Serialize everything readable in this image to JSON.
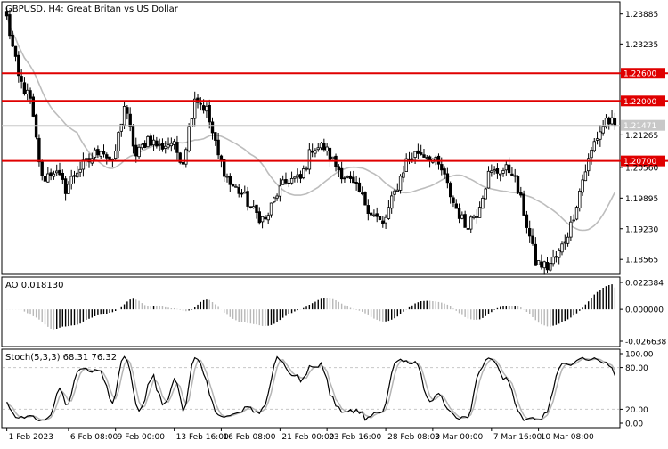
{
  "chart_data": [
    {
      "type": "candlestick",
      "title": "GBPUSD, H4:  Great Britan vs US Dollar",
      "symbol": "GBPUSD",
      "timeframe": "H4",
      "ylim": [
        1.1826,
        1.2413
      ],
      "price_ticks": [
        "1.23885",
        "1.23235",
        "1.22600",
        "1.22000",
        "1.21471",
        "1.21265",
        "1.20700",
        "1.20560",
        "1.19895",
        "1.19230",
        "1.18565"
      ],
      "horizontal_levels": [
        {
          "value": 1.226,
          "label": "1.22600"
        },
        {
          "value": 1.22,
          "label": "1.22000"
        },
        {
          "value": 1.207,
          "label": "1.20700"
        }
      ],
      "current_price": {
        "value": 1.21471,
        "label": "1.21471"
      },
      "moving_average_color": "#bdbdbd",
      "level_color": "#e00000",
      "anchors": [
        [
          0,
          1.238
        ],
        [
          4,
          1.225
        ],
        [
          8,
          1.22
        ],
        [
          12,
          1.203
        ],
        [
          16,
          1.205
        ],
        [
          20,
          1.201
        ],
        [
          24,
          1.205
        ],
        [
          28,
          1.207
        ],
        [
          32,
          1.21
        ],
        [
          36,
          1.206
        ],
        [
          40,
          1.219
        ],
        [
          44,
          1.208
        ],
        [
          48,
          1.212
        ],
        [
          52,
          1.21
        ],
        [
          56,
          1.211
        ],
        [
          60,
          1.207
        ],
        [
          64,
          1.221
        ],
        [
          68,
          1.218
        ],
        [
          72,
          1.208
        ],
        [
          76,
          1.202
        ],
        [
          80,
          1.2
        ],
        [
          84,
          1.196
        ],
        [
          88,
          1.194
        ],
        [
          92,
          1.2
        ],
        [
          96,
          1.203
        ],
        [
          100,
          1.203
        ],
        [
          104,
          1.21
        ],
        [
          108,
          1.21
        ],
        [
          112,
          1.206
        ],
        [
          116,
          1.203
        ],
        [
          120,
          1.2
        ],
        [
          124,
          1.196
        ],
        [
          128,
          1.193
        ],
        [
          132,
          1.2
        ],
        [
          136,
          1.207
        ],
        [
          140,
          1.209
        ],
        [
          144,
          1.208
        ],
        [
          148,
          1.205
        ],
        [
          152,
          1.198
        ],
        [
          156,
          1.193
        ],
        [
          160,
          1.196
        ],
        [
          164,
          1.204
        ],
        [
          168,
          1.205
        ],
        [
          172,
          1.205
        ],
        [
          176,
          1.196
        ],
        [
          180,
          1.185
        ],
        [
          184,
          1.184
        ],
        [
          188,
          1.187
        ],
        [
          192,
          1.193
        ],
        [
          196,
          1.203
        ],
        [
          200,
          1.211
        ],
        [
          204,
          1.216
        ],
        [
          207,
          1.2147
        ]
      ],
      "x_labels": [
        {
          "label": "1 Feb 2023",
          "index": 0
        },
        {
          "label": "6 Feb 08:00",
          "index": 21
        },
        {
          "label": "9 Feb 00:00",
          "index": 37
        },
        {
          "label": "13 Feb 16:00",
          "index": 57
        },
        {
          "label": "16 Feb 08:00",
          "index": 73
        },
        {
          "label": "21 Feb 00:00",
          "index": 93
        },
        {
          "label": "23 Feb 16:00",
          "index": 109
        },
        {
          "label": "28 Feb 08:00",
          "index": 129
        },
        {
          "label": "3 Mar 00:00",
          "index": 145
        },
        {
          "label": "7 Mar 16:00",
          "index": 165
        },
        {
          "label": "10 Mar 08:00",
          "index": 181
        }
      ]
    },
    {
      "type": "bar",
      "title": "AO 0.018130",
      "indicator": "Awesome Oscillator",
      "ylim": [
        -0.026638,
        0.022384
      ],
      "ticks": [
        "0.022384",
        "0.000000",
        "-0.026638"
      ]
    },
    {
      "type": "line",
      "title": "Stoch(5,3,3) 68.31 76.32",
      "ylim": [
        0,
        100
      ],
      "ticks": [
        "100.00",
        "80.00",
        "20.00",
        "0.00"
      ],
      "levels": [
        80,
        20
      ]
    }
  ]
}
